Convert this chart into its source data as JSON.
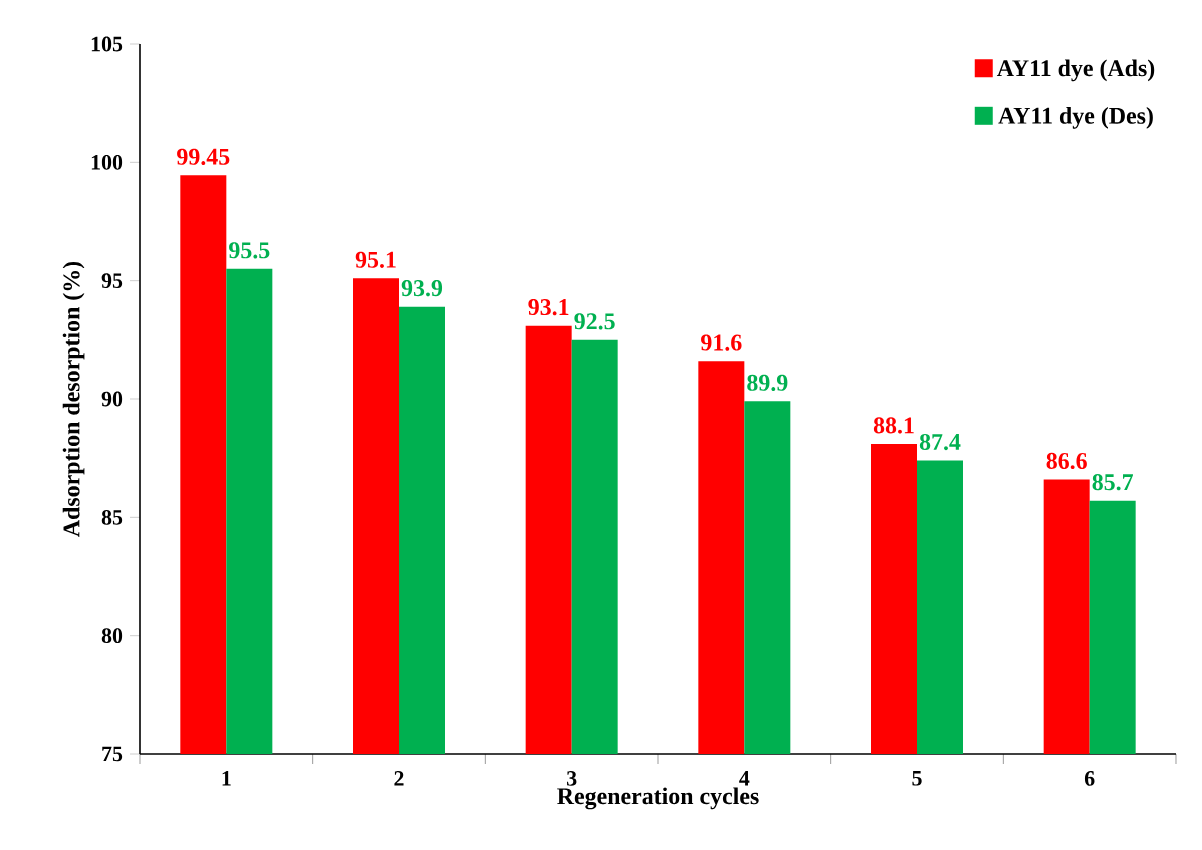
{
  "chart_data": {
    "type": "bar",
    "xlabel": "Regeneration cycles",
    "ylabel": "Adsorption desorption (%)",
    "categories": [
      "1",
      "2",
      "3",
      "4",
      "5",
      "6"
    ],
    "series": [
      {
        "name": "AY11 dye (Ads)",
        "color": "#ff0000",
        "values": [
          99.45,
          95.1,
          93.1,
          91.6,
          88.1,
          86.6
        ],
        "value_labels": [
          "99.45",
          "95.1",
          "93.1",
          "91.6",
          "88.1",
          "86.6"
        ]
      },
      {
        "name": "AY11 dye (Des)",
        "color": "#00b050",
        "values": [
          95.5,
          93.9,
          92.5,
          89.9,
          87.4,
          85.7
        ],
        "value_labels": [
          "95.5",
          "93.9",
          "92.5",
          "89.9",
          "87.4",
          "85.7"
        ]
      }
    ],
    "ylim": [
      75,
      105
    ],
    "yticks": [
      75,
      80,
      85,
      90,
      95,
      100,
      105
    ],
    "legend": "top right"
  }
}
